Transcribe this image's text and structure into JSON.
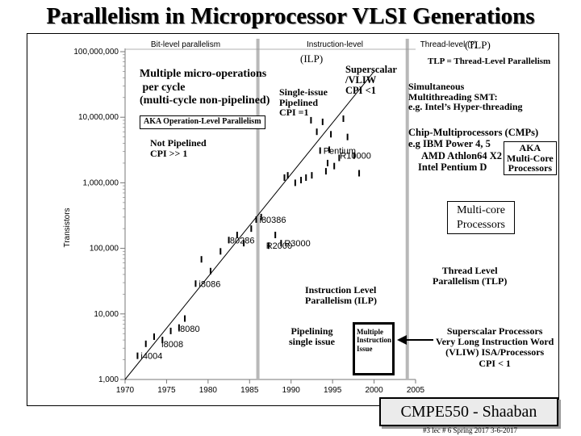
{
  "slide": {
    "title": "Parallelism in Microprocessor VLSI Generations",
    "footer": "CMPE550 - Shaaban",
    "subfooter": "#3  lec # 6  Spring 2017  3-6-2017"
  },
  "chart_data": {
    "type": "scatter",
    "title": "",
    "xlabel": "",
    "ylabel": "Transistors",
    "xlim": [
      1970,
      2005
    ],
    "ylim": [
      1000,
      100000000
    ],
    "yscale": "log",
    "x_ticks": [
      {
        "value": 1970,
        "label": "1970"
      },
      {
        "value": 1975,
        "label": "1975"
      },
      {
        "value": 1980,
        "label": "1980"
      },
      {
        "value": 1985,
        "label": "1985"
      },
      {
        "value": 1990,
        "label": "1990"
      },
      {
        "value": 1995,
        "label": "1995"
      },
      {
        "value": 2000,
        "label": "2000"
      },
      {
        "value": 2005,
        "label": "2005"
      }
    ],
    "y_ticks": [
      {
        "value": 1000,
        "label": "1,000"
      },
      {
        "value": 10000,
        "label": "10,000"
      },
      {
        "value": 100000,
        "label": "100,000"
      },
      {
        "value": 1000000,
        "label": "1,000,000"
      },
      {
        "value": 10000000,
        "label": "10,000,000"
      },
      {
        "value": 100000000,
        "label": "100,000,000"
      }
    ],
    "eras": [
      {
        "label": "Bit-level parallelism",
        "from": 1970,
        "to": 1986
      },
      {
        "label": "Instruction-level",
        "from": 1986,
        "to": 2004
      },
      {
        "label": "Thread-level (?)",
        "from": 2004,
        "to": 2005
      }
    ],
    "era_boundaries": [
      1986,
      2004
    ],
    "trend_line": {
      "x0": 1970,
      "y0": 1000,
      "x1": 2000,
      "y1": 50000000
    },
    "labeled_points": [
      {
        "label": "i4004",
        "x": 1971.5,
        "y": 2300
      },
      {
        "label": "i8008",
        "x": 1974,
        "y": 3500
      },
      {
        "label": "i8080",
        "x": 1976,
        "y": 6000
      },
      {
        "label": "i8086",
        "x": 1978.5,
        "y": 29000
      },
      {
        "label": "i80286",
        "x": 1982,
        "y": 134000
      },
      {
        "label": "i80386",
        "x": 1985.8,
        "y": 275000
      },
      {
        "label": "R2000",
        "x": 1986.6,
        "y": 110000
      },
      {
        "label": "R3000",
        "x": 1988.8,
        "y": 120000
      },
      {
        "label": "Pentium",
        "x": 1993.5,
        "y": 3100000
      },
      {
        "label": "R10000",
        "x": 1995.5,
        "y": 2600000
      }
    ],
    "points": [
      {
        "x": 1971.5,
        "y": 2300
      },
      {
        "x": 1972.5,
        "y": 3500
      },
      {
        "x": 1973.5,
        "y": 4500
      },
      {
        "x": 1974.5,
        "y": 4000
      },
      {
        "x": 1975.5,
        "y": 5500
      },
      {
        "x": 1976.5,
        "y": 6200
      },
      {
        "x": 1977.2,
        "y": 8500
      },
      {
        "x": 1978.5,
        "y": 29000
      },
      {
        "x": 1979.2,
        "y": 68000
      },
      {
        "x": 1980.3,
        "y": 45000
      },
      {
        "x": 1981.5,
        "y": 90000
      },
      {
        "x": 1982.5,
        "y": 134000
      },
      {
        "x": 1983.5,
        "y": 160000
      },
      {
        "x": 1984.3,
        "y": 120000
      },
      {
        "x": 1985.2,
        "y": 200000
      },
      {
        "x": 1985.8,
        "y": 275000
      },
      {
        "x": 1986.4,
        "y": 300000
      },
      {
        "x": 1987.3,
        "y": 110000
      },
      {
        "x": 1988.1,
        "y": 160000
      },
      {
        "x": 1988.8,
        "y": 120000
      },
      {
        "x": 1989.2,
        "y": 1200000
      },
      {
        "x": 1989.6,
        "y": 1300000
      },
      {
        "x": 1990.5,
        "y": 1000000
      },
      {
        "x": 1991.2,
        "y": 1100000
      },
      {
        "x": 1991.8,
        "y": 1200000
      },
      {
        "x": 1992.5,
        "y": 1300000
      },
      {
        "x": 1992.4,
        "y": 9000000
      },
      {
        "x": 1993.1,
        "y": 6000000
      },
      {
        "x": 1993.5,
        "y": 3100000
      },
      {
        "x": 1993.8,
        "y": 8500000
      },
      {
        "x": 1994.2,
        "y": 1500000
      },
      {
        "x": 1994.4,
        "y": 2000000
      },
      {
        "x": 1994.6,
        "y": 3200000
      },
      {
        "x": 1994.8,
        "y": 5500000
      },
      {
        "x": 1995.2,
        "y": 1800000
      },
      {
        "x": 1995.8,
        "y": 2400000
      },
      {
        "x": 1996.3,
        "y": 9500000
      },
      {
        "x": 1996.8,
        "y": 5000000
      },
      {
        "x": 1997.6,
        "y": 2600000
      },
      {
        "x": 1998.2,
        "y": 1400000
      }
    ]
  },
  "annotations": {
    "tlp_heading": "(TLP)",
    "ilp_heading": "(ILP)",
    "tlp_definition": "TLP = Thread-Level Parallelism",
    "micro_ops": [
      "Multiple micro-operations",
      " per cycle",
      "(multi-cycle non-pipelined)"
    ],
    "aka_operation_level": "AKA Operation-Level Parallelism",
    "not_pipelined": [
      "Not Pipelined",
      "CPI >> 1"
    ],
    "single_issue": [
      "Single-issue",
      "Pipelined",
      "CPI =1"
    ],
    "superscalar_vliw": [
      "Superscalar",
      "/VLIW",
      "CPI <1"
    ],
    "smt": [
      "Simultaneous",
      "Multithreading SMT:",
      "e.g. Intel’s Hyper-threading"
    ],
    "cmp": [
      "Chip-Multiprocessors (CMPs)",
      "e.g IBM Power 4, 5",
      "AMD Athlon64 X2",
      "Intel Pentium D"
    ],
    "aka_multicore": [
      "AKA",
      "Multi-Core",
      "Processors"
    ],
    "multicore_box": [
      "Multi-core",
      "Processors"
    ],
    "thread_level": [
      "Thread Level",
      "Parallelism (TLP)"
    ],
    "ilp_label": [
      "Instruction Level",
      "Parallelism (ILP)"
    ],
    "pipelining": [
      "Pipelining",
      "single issue"
    ],
    "multiple_issue": [
      "Multiple",
      "Instruction",
      "Issue"
    ],
    "superscalar_processors": [
      "Superscalar Processors",
      "Very Long Instruction Word",
      "(VLIW)  ISA/Processors",
      "CPI < 1"
    ]
  }
}
